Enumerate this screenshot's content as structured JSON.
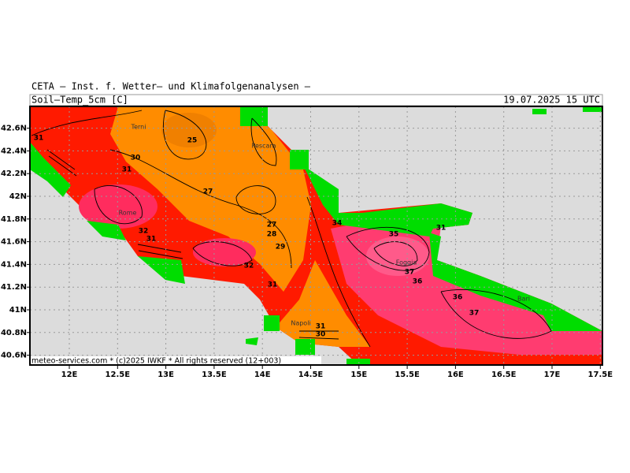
{
  "header": {
    "agency": "CETA — Inst. f. Wetter— und Klimafolgenanalysen —",
    "field": "Soil—Temp_5cm [C]",
    "valid_time": "19.07.2025 15 UTC"
  },
  "footer": {
    "credit": "meteo-services.com * (c)2025 IWKF * All rights reserved (12+003)"
  },
  "axes": {
    "x_ticks": [
      {
        "value": 12,
        "label": "12E"
      },
      {
        "value": 12.5,
        "label": "12.5E"
      },
      {
        "value": 13,
        "label": "13E"
      },
      {
        "value": 13.5,
        "label": "13.5E"
      },
      {
        "value": 14,
        "label": "14E"
      },
      {
        "value": 14.5,
        "label": "14.5E"
      },
      {
        "value": 15,
        "label": "15E"
      },
      {
        "value": 15.5,
        "label": "15.5E"
      },
      {
        "value": 16,
        "label": "16E"
      },
      {
        "value": 16.5,
        "label": "16.5E"
      },
      {
        "value": 17,
        "label": "17E"
      },
      {
        "value": 17.5,
        "label": "17.5E"
      }
    ],
    "y_ticks": [
      {
        "value": 42.6,
        "label": "42.6N"
      },
      {
        "value": 42.4,
        "label": "42.4N"
      },
      {
        "value": 42.2,
        "label": "42.2N"
      },
      {
        "value": 42,
        "label": "42N"
      },
      {
        "value": 41.8,
        "label": "41.8N"
      },
      {
        "value": 41.6,
        "label": "41.6N"
      },
      {
        "value": 41.4,
        "label": "41.4N"
      },
      {
        "value": 41.2,
        "label": "41.2N"
      },
      {
        "value": 41,
        "label": "41N"
      },
      {
        "value": 40.8,
        "label": "40.8N"
      },
      {
        "value": 40.6,
        "label": "40.6N"
      }
    ]
  },
  "contour_labels": [
    31,
    25,
    30,
    31,
    27,
    27,
    28,
    29,
    34,
    35,
    31,
    32,
    31,
    32,
    31,
    37,
    36,
    36,
    37,
    31,
    30
  ],
  "places": [
    "Terni",
    "Pescara",
    "Rome",
    "Foggia",
    "Napoli",
    "Bari"
  ]
}
